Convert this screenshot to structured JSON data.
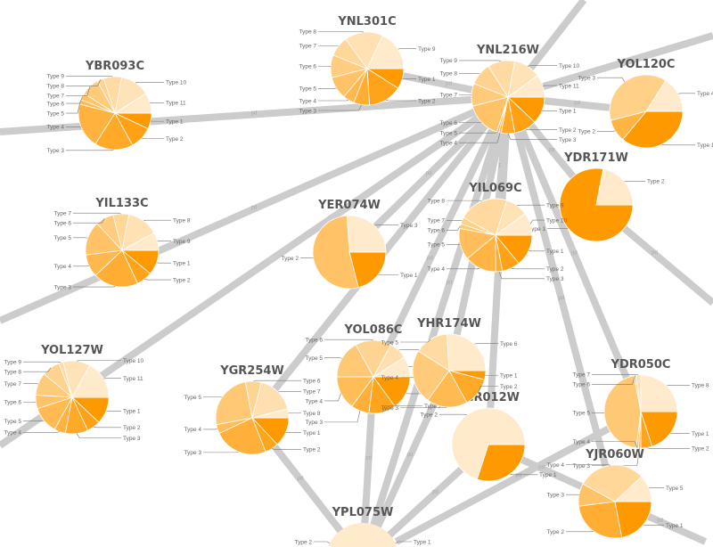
{
  "colors": {
    "edge": "#cccccc",
    "type_dark": "#ff9900",
    "type_light": "#ffebcc",
    "title": "#555555",
    "label": "#666666"
  },
  "edges": [
    {
      "source": "left-edge-a",
      "target": "YNL216W",
      "label": "pd"
    },
    {
      "source": "YNL216W",
      "target": "YOL120C",
      "label": "pd"
    },
    {
      "source": "top-edge-a",
      "target": "YNL216W",
      "label": ""
    },
    {
      "source": "right-edge-a",
      "target": "YNL216W",
      "label": ""
    },
    {
      "source": "YNL216W",
      "target": "YDR171W",
      "label": "pp"
    },
    {
      "source": "YDR171W",
      "target": "right-edge-b",
      "label": "pd"
    },
    {
      "source": "left-edge-b",
      "target": "YNL216W",
      "label": "pd"
    },
    {
      "source": "left-edge-c",
      "target": "YNL216W",
      "label": ""
    },
    {
      "source": "YGR254W",
      "target": "YNL216W",
      "label": "pd"
    },
    {
      "source": "YER074W",
      "target": "YNL216W",
      "label": "pd"
    },
    {
      "source": "YIL069C",
      "target": "YNL216W",
      "label": "pd"
    },
    {
      "source": "YOL086C",
      "target": "YNL216W",
      "label": "pd"
    },
    {
      "source": "YHR174W",
      "target": "YNL216W",
      "label": "pd"
    },
    {
      "source": "YCR012W",
      "target": "YNL216W",
      "label": "pd"
    },
    {
      "source": "YDR050C",
      "target": "YNL216W",
      "label": "pd"
    },
    {
      "source": "YJR060W",
      "target": "YNL216W",
      "label": "pd"
    },
    {
      "source": "YPL075W",
      "target": "YNL216W",
      "label": "pd"
    },
    {
      "source": "YOL086C",
      "target": "YPL075W",
      "label": "pd"
    },
    {
      "source": "YHR174W",
      "target": "YPL075W",
      "label": "pd"
    },
    {
      "source": "YGR254W",
      "target": "YPL075W",
      "label": "pd"
    },
    {
      "source": "YCR012W",
      "target": "YPL075W",
      "label": "pd"
    },
    {
      "source": "YDR050C",
      "target": "YPL075W",
      "label": "pd"
    },
    {
      "source": "YCR012W",
      "target": "YJR060W",
      "label": "pd"
    },
    {
      "source": "YJR060W",
      "target": "bottom-edge-a",
      "label": "pd"
    },
    {
      "source": "YNL301C",
      "target": "YNL216W",
      "label": "pd"
    }
  ],
  "nodes": [
    {
      "name": "YBR093C",
      "slices": [
        {
          "label": "Type 1",
          "value": 0.07
        },
        {
          "label": "Type 2",
          "value": 0.1
        },
        {
          "label": "Type 3",
          "value": 0.17
        },
        {
          "label": "Type 4",
          "value": 0.2
        },
        {
          "label": "Type 5",
          "value": 0.02
        },
        {
          "label": "Type 6",
          "value": 0.03
        },
        {
          "label": "Type 7",
          "value": 0.08
        },
        {
          "label": "Type 8",
          "value": 0.03
        },
        {
          "label": "Type 9",
          "value": 0.08
        },
        {
          "label": "Type 10",
          "value": 0.13
        },
        {
          "label": "Type 11",
          "value": 0.09
        }
      ]
    },
    {
      "name": "YNL301C",
      "slices": [
        {
          "label": "Type 1",
          "value": 0.09
        },
        {
          "label": "Type 2",
          "value": 0.15
        },
        {
          "label": "Type 3",
          "value": 0.07
        },
        {
          "label": "Type 4",
          "value": 0.05
        },
        {
          "label": "Type 5",
          "value": 0.1
        },
        {
          "label": "Type 6",
          "value": 0.1
        },
        {
          "label": "Type 7",
          "value": 0.09
        },
        {
          "label": "Type 8",
          "value": 0.17
        },
        {
          "label": "Type 9",
          "value": 0.18
        }
      ]
    },
    {
      "name": "YNL216W",
      "slices": [
        {
          "label": "Type 1",
          "value": 0.12
        },
        {
          "label": "Type 2",
          "value": 0.1
        },
        {
          "label": "Type 3",
          "value": 0.06
        },
        {
          "label": "Type 4",
          "value": 0.01
        },
        {
          "label": "Type 5",
          "value": 0.01
        },
        {
          "label": "Type 6",
          "value": 0.16
        },
        {
          "label": "Type 7",
          "value": 0.1
        },
        {
          "label": "Type 8",
          "value": 0.1
        },
        {
          "label": "Type 9",
          "value": 0.12
        },
        {
          "label": "Type 10",
          "value": 0.12
        },
        {
          "label": "Type 11",
          "value": 0.1
        }
      ]
    },
    {
      "name": "YOL120C",
      "slices": [
        {
          "label": "Type 1",
          "value": 0.36
        },
        {
          "label": "Type 2",
          "value": 0.1
        },
        {
          "label": "Type 3",
          "value": 0.38
        },
        {
          "label": "Type 4",
          "value": 0.16
        }
      ]
    },
    {
      "name": "YDR171W",
      "slices": [
        {
          "label": "Type 1",
          "value": 0.78
        },
        {
          "label": "Type 2",
          "value": 0.22
        }
      ]
    },
    {
      "name": "YIL133C",
      "slices": [
        {
          "label": "Type 1",
          "value": 0.11
        },
        {
          "label": "Type 2",
          "value": 0.07
        },
        {
          "label": "Type 3",
          "value": 0.2
        },
        {
          "label": "Type 4",
          "value": 0.1
        },
        {
          "label": "Type 5",
          "value": 0.15
        },
        {
          "label": "Type 6",
          "value": 0.08
        },
        {
          "label": "Type 7",
          "value": 0.07
        },
        {
          "label": "Type 8",
          "value": 0.14
        },
        {
          "label": "Type 9",
          "value": 0.08
        }
      ]
    },
    {
      "name": "YER074W",
      "slices": [
        {
          "label": "Type 1",
          "value": 0.21
        },
        {
          "label": "Type 2",
          "value": 0.53
        },
        {
          "label": "Type 3",
          "value": 0.26
        }
      ]
    },
    {
      "name": "YIL069C",
      "slices": [
        {
          "label": "Type 1",
          "value": 0.14
        },
        {
          "label": "Type 2",
          "value": 0.08
        },
        {
          "label": "Type 3",
          "value": 0.03
        },
        {
          "label": "Type 4",
          "value": 0.14
        },
        {
          "label": "Type 5",
          "value": 0.14
        },
        {
          "label": "Type 6",
          "value": 0.02
        },
        {
          "label": "Type 7",
          "value": 0.03
        },
        {
          "label": "Type 8",
          "value": 0.22
        },
        {
          "label": "Type 9",
          "value": 0.1
        },
        {
          "label": "Type 10",
          "value": 0.1
        }
      ]
    },
    {
      "name": "YOL127W",
      "slices": [
        {
          "label": "Type 1",
          "value": 0.12
        },
        {
          "label": "Type 2",
          "value": 0.06
        },
        {
          "label": "Type 3",
          "value": 0.1
        },
        {
          "label": "Type 4",
          "value": 0.05
        },
        {
          "label": "Type 5",
          "value": 0.12
        },
        {
          "label": "Type 6",
          "value": 0.06
        },
        {
          "label": "Type 7",
          "value": 0.1
        },
        {
          "label": "Type 8",
          "value": 0.08
        },
        {
          "label": "Type 9",
          "value": 0.02
        },
        {
          "label": "Type 10",
          "value": 0.12
        },
        {
          "label": "Type 11",
          "value": 0.17
        }
      ]
    },
    {
      "name": "YGR254W",
      "slices": [
        {
          "label": "Type 1",
          "value": 0.13
        },
        {
          "label": "Type 2",
          "value": 0.06
        },
        {
          "label": "Type 3",
          "value": 0.24
        },
        {
          "label": "Type 4",
          "value": 0.04
        },
        {
          "label": "Type 5",
          "value": 0.25
        },
        {
          "label": "Type 6",
          "value": 0.07
        },
        {
          "label": "Type 7",
          "value": 0.17
        },
        {
          "label": "Type 8",
          "value": 0.04
        }
      ]
    },
    {
      "name": "YCR012W",
      "slices": [
        {
          "label": "Type 1",
          "value": 0.3
        },
        {
          "label": "Type 2",
          "value": 0.7
        }
      ]
    },
    {
      "name": "YOL086C",
      "slices": [
        {
          "label": "Type 1",
          "value": 0.15
        },
        {
          "label": "Type 2",
          "value": 0.12
        },
        {
          "label": "Type 3",
          "value": 0.08
        },
        {
          "label": "Type 4",
          "value": 0.15
        },
        {
          "label": "Type 5",
          "value": 0.17
        },
        {
          "label": "Type 6",
          "value": 0.16
        },
        {
          "label": "Type 7",
          "value": 0.08
        },
        {
          "label": "Type 8",
          "value": 0.09
        }
      ]
    },
    {
      "name": "YHR174W",
      "slices": [
        {
          "label": "Type 1",
          "value": 0.04
        },
        {
          "label": "Type 2",
          "value": 0.13
        },
        {
          "label": "Type 3",
          "value": 0.18
        },
        {
          "label": "Type 4",
          "value": 0.24
        },
        {
          "label": "Type 5",
          "value": 0.15
        },
        {
          "label": "Type 6",
          "value": 0.26
        }
      ]
    },
    {
      "name": "YDR050C",
      "slices": [
        {
          "label": "Type 1",
          "value": 0.2
        },
        {
          "label": "Type 2",
          "value": 0.05
        },
        {
          "label": "Type 3",
          "value": 0.01
        },
        {
          "label": "Type 4",
          "value": 0.01
        },
        {
          "label": "Type 5",
          "value": 0.45
        },
        {
          "label": "Type 6",
          "value": 0.01
        },
        {
          "label": "Type 7",
          "value": 0.02
        },
        {
          "label": "Type 8",
          "value": 0.25
        }
      ]
    },
    {
      "name": "YJR060W",
      "slices": [
        {
          "label": "Type 1",
          "value": 0.22
        },
        {
          "label": "Type 2",
          "value": 0.26
        },
        {
          "label": "Type 3",
          "value": 0.1
        },
        {
          "label": "Type 4",
          "value": 0.3
        },
        {
          "label": "Type 5",
          "value": 0.12
        }
      ]
    },
    {
      "name": "YPL075W",
      "slices": [
        {
          "label": "Type 1",
          "value": 0.0
        },
        {
          "label": "Type 2",
          "value": 1.0
        }
      ]
    }
  ]
}
